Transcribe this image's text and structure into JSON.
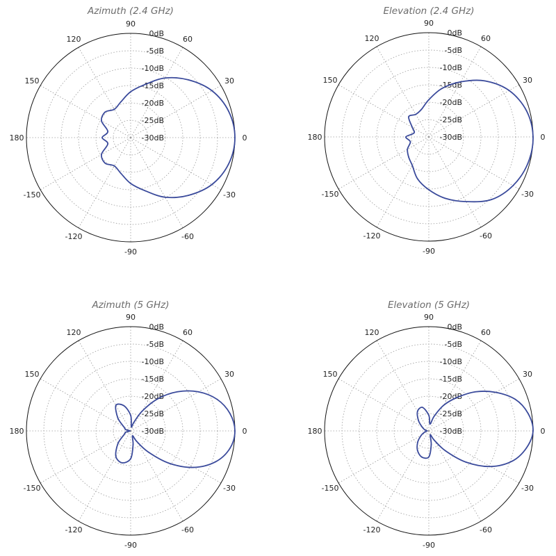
{
  "colors": {
    "trace": "#3a4a9b"
  },
  "chart_data": [
    {
      "type": "line",
      "projection": "polar",
      "title": "Azimuth (2.4 GHz)",
      "angle_ticks": [
        0,
        30,
        60,
        90,
        120,
        150,
        180,
        -150,
        -120,
        -90,
        -60,
        -30
      ],
      "radial_ticks": [
        "0dB",
        "-5dB",
        "-10dB",
        "-15dB",
        "-20dB",
        "-25dB",
        "-30dB"
      ],
      "rlim": [
        -30,
        0
      ],
      "grid": true,
      "series": [
        {
          "angle_deg": [
            0,
            15,
            30,
            45,
            60,
            75,
            90,
            105,
            120,
            135,
            150,
            165,
            180,
            -165,
            -150,
            -135,
            -120,
            -105,
            -90,
            -75,
            -60,
            -45,
            -30,
            -15
          ],
          "gain_db": [
            0,
            -0.8,
            -3,
            -6.5,
            -10.2,
            -14.2,
            -16.8,
            -19.3,
            -20.6,
            -19.6,
            -20.3,
            -23.2,
            -21.8,
            -23.2,
            -20.3,
            -19.6,
            -20.6,
            -19.3,
            -16.8,
            -14.2,
            -10.2,
            -6.5,
            -3,
            -0.8
          ]
        }
      ]
    },
    {
      "type": "line",
      "projection": "polar",
      "title": "Elevation (2.4 GHz)",
      "angle_ticks": [
        0,
        30,
        60,
        90,
        120,
        150,
        180,
        -150,
        -120,
        -90,
        -60,
        -30
      ],
      "radial_ticks": [
        "0dB",
        "-5dB",
        "-10dB",
        "-15dB",
        "-20dB",
        "-25dB",
        "-30dB"
      ],
      "rlim": [
        -30,
        0
      ],
      "grid": true,
      "series": [
        {
          "angle_deg": [
            0,
            15,
            30,
            45,
            60,
            75,
            90,
            105,
            120,
            135,
            150,
            165,
            180,
            -165,
            -150,
            -135,
            -120,
            -105,
            -90,
            -75,
            -60,
            -45,
            -30,
            -15
          ],
          "gain_db": [
            0,
            -0.9,
            -3.3,
            -7.2,
            -11.7,
            -15.6,
            -19.3,
            -21.8,
            -22.5,
            -21.8,
            -24.5,
            -25.6,
            -23.4,
            -24.5,
            -22.9,
            -21.8,
            -20.5,
            -17.5,
            -14.8,
            -11.7,
            -8.5,
            -4.5,
            -2,
            -0.5
          ]
        }
      ]
    },
    {
      "type": "line",
      "projection": "polar",
      "title": "Azimuth (5 GHz)",
      "angle_ticks": [
        0,
        30,
        60,
        90,
        120,
        150,
        180,
        -150,
        -120,
        -90,
        -60,
        -30
      ],
      "radial_ticks": [
        "0dB",
        "-5dB",
        "-10dB",
        "-15dB",
        "-20dB",
        "-25dB",
        "-30dB"
      ],
      "rlim": [
        -30,
        0
      ],
      "grid": true,
      "series": [
        {
          "angle_deg": [
            0,
            10,
            20,
            30,
            40,
            50,
            60,
            70,
            80,
            90,
            105,
            120,
            135,
            150,
            165,
            180,
            -165,
            -150,
            -135,
            -120,
            -105,
            -90,
            -80,
            -70,
            -60,
            -50,
            -40,
            -30,
            -20,
            -10
          ],
          "gain_db": [
            0,
            -1,
            -3.5,
            -7.5,
            -12.5,
            -18,
            -23.5,
            -27.5,
            -28.8,
            -25.5,
            -22.5,
            -21.5,
            -24.8,
            -27.8,
            -28.5,
            -29.8,
            -28.5,
            -27.8,
            -24.8,
            -21.5,
            -20.5,
            -22,
            -26,
            -28.5,
            -26.5,
            -22,
            -15.5,
            -9,
            -4,
            -1
          ]
        }
      ]
    },
    {
      "type": "line",
      "projection": "polar",
      "title": "Elevation (5 GHz)",
      "angle_ticks": [
        0,
        30,
        60,
        90,
        120,
        150,
        180,
        -150,
        -120,
        -90,
        -60,
        -30
      ],
      "radial_ticks": [
        "0dB",
        "-5dB",
        "-10dB",
        "-15dB",
        "-20dB",
        "-25dB",
        "-30dB"
      ],
      "rlim": [
        -30,
        0
      ],
      "grid": true,
      "series": [
        {
          "angle_deg": [
            0,
            10,
            20,
            30,
            40,
            50,
            60,
            70,
            80,
            90,
            105,
            120,
            135,
            150,
            165,
            180,
            -165,
            -150,
            -135,
            -120,
            -105,
            -90,
            -80,
            -70,
            -60,
            -50,
            -40,
            -30,
            -20,
            -10
          ],
          "gain_db": [
            0,
            -1,
            -3.5,
            -7.8,
            -12.5,
            -17.5,
            -21.5,
            -25.5,
            -28,
            -25.5,
            -23,
            -23.5,
            -25.8,
            -27.8,
            -28.8,
            -29.5,
            -28.8,
            -27.5,
            -25.5,
            -23.5,
            -22.2,
            -22.5,
            -26,
            -28.8,
            -27,
            -22.5,
            -16,
            -9.5,
            -4.5,
            -1.5
          ]
        }
      ]
    }
  ]
}
